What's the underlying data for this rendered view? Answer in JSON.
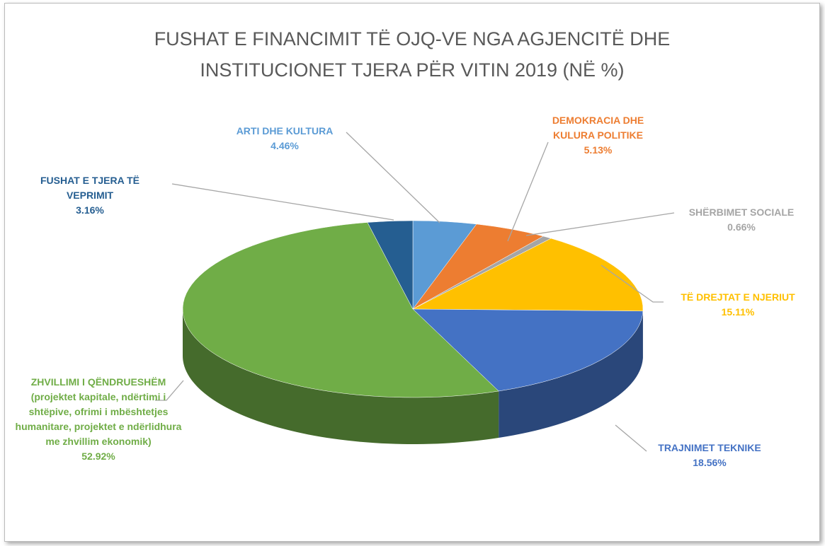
{
  "chart_data": {
    "type": "pie3d",
    "title": "FUSHAT E FINANCIMIT TË OJQ-VE NGA AGJENCITË DHE INSTITUCIONET TJERA PËR VITIN 2019 (NË %)",
    "categories": [
      "ARTI DHE KULTURA",
      "DEMOKRACIA DHE KULURA POLITIKE",
      "SHËRBIMET SOCIALE",
      "TË DREJTAT E NJERIUT",
      "TRAJNIMET TEKNIKE",
      "ZHVILLIMI I QËNDRUESHËM (projektet kapitale, ndërtimi i shtëpive, ofrimi i mbështetjes humanitare, projektet e ndërlidhura me zhvillim ekonomik)",
      "FUSHAT E TJERA TË VEPRIMIT"
    ],
    "values": [
      4.46,
      5.13,
      0.66,
      15.11,
      18.56,
      52.92,
      3.16
    ],
    "value_labels": [
      "4.46%",
      "5.13%",
      "0.66%",
      "15.11%",
      "18.56%",
      "52.92%",
      "3.16%"
    ],
    "colors": [
      "#5b9bd5",
      "#ed7d31",
      "#a5a5a5",
      "#ffc000",
      "#4472c4",
      "#70ad47",
      "#255e91"
    ]
  }
}
